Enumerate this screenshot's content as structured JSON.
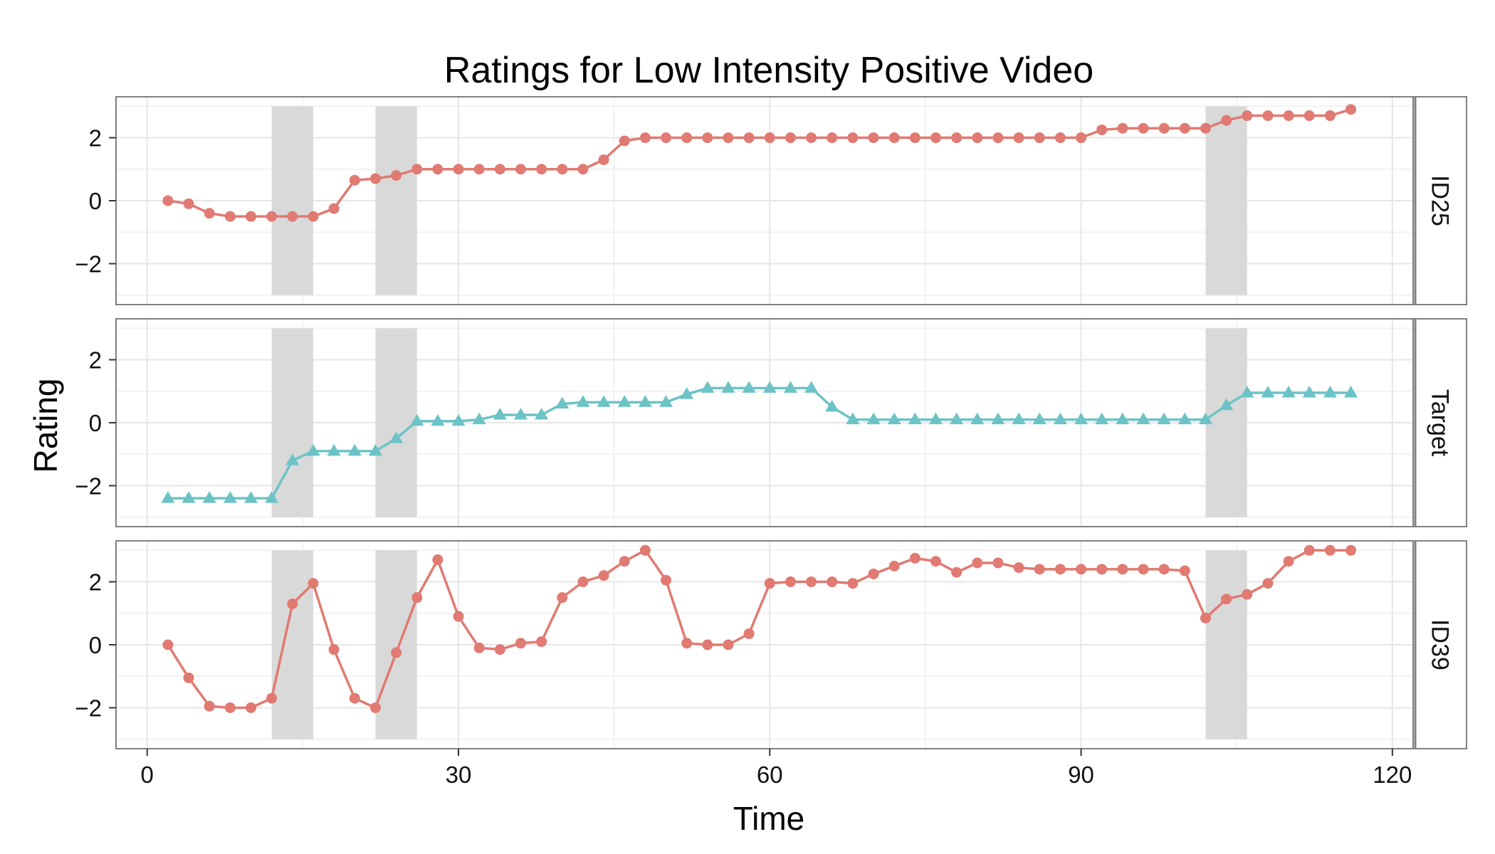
{
  "chart_data": {
    "type": "line",
    "title": "Ratings for Low Intensity Positive Video",
    "xlabel": "Time",
    "ylabel": "Rating",
    "xlim": [
      -3,
      122
    ],
    "ylim": [
      -3.3,
      3.3
    ],
    "x_ticks": [
      0,
      30,
      60,
      90,
      120
    ],
    "x_tick_labels": [
      "0",
      "30",
      "60",
      "90",
      "120"
    ],
    "y_ticks": [
      -2,
      0,
      2
    ],
    "y_tick_labels": [
      "−2",
      "0",
      "2"
    ],
    "grid": true,
    "legend": "none",
    "shaded_intervals": [
      [
        12,
        16
      ],
      [
        22,
        26
      ],
      [
        102,
        106
      ]
    ],
    "x": [
      2,
      4,
      6,
      8,
      10,
      12,
      14,
      16,
      18,
      20,
      22,
      24,
      26,
      28,
      30,
      32,
      34,
      36,
      38,
      40,
      42,
      44,
      46,
      48,
      50,
      52,
      54,
      56,
      58,
      60,
      62,
      64,
      66,
      68,
      70,
      72,
      74,
      76,
      78,
      80,
      82,
      84,
      86,
      88,
      90,
      92,
      94,
      96,
      98,
      100,
      102,
      104,
      106,
      108,
      110,
      112,
      114,
      116
    ],
    "series": [
      {
        "name": "ID25",
        "marker": "circle",
        "color": "#E07A72",
        "values": [
          0,
          -0.1,
          -0.4,
          -0.5,
          -0.5,
          -0.5,
          -0.5,
          -0.5,
          -0.25,
          0.65,
          0.7,
          0.8,
          1.0,
          1.0,
          1.0,
          1.0,
          1.0,
          1.0,
          1.0,
          1.0,
          1.0,
          1.3,
          1.9,
          2.0,
          2.0,
          2.0,
          2.0,
          2.0,
          2.0,
          2.0,
          2.0,
          2.0,
          2.0,
          2.0,
          2.0,
          2.0,
          2.0,
          2.0,
          2.0,
          2.0,
          2.0,
          2.0,
          2.0,
          2.0,
          2.0,
          2.25,
          2.3,
          2.3,
          2.3,
          2.3,
          2.3,
          2.55,
          2.7,
          2.7,
          2.7,
          2.7,
          2.7,
          2.9
        ]
      },
      {
        "name": "Target",
        "marker": "triangle",
        "color": "#6CC3C6",
        "values": [
          -2.4,
          -2.4,
          -2.4,
          -2.4,
          -2.4,
          -2.4,
          -1.2,
          -0.9,
          -0.9,
          -0.9,
          -0.9,
          -0.5,
          0.05,
          0.05,
          0.05,
          0.1,
          0.25,
          0.25,
          0.25,
          0.6,
          0.65,
          0.65,
          0.65,
          0.65,
          0.65,
          0.9,
          1.1,
          1.1,
          1.1,
          1.1,
          1.1,
          1.1,
          0.5,
          0.1,
          0.1,
          0.1,
          0.1,
          0.1,
          0.1,
          0.1,
          0.1,
          0.1,
          0.1,
          0.1,
          0.1,
          0.1,
          0.1,
          0.1,
          0.1,
          0.1,
          0.1,
          0.55,
          0.95,
          0.95,
          0.95,
          0.95,
          0.95,
          0.95
        ]
      },
      {
        "name": "ID39",
        "marker": "circle",
        "color": "#E07A72",
        "values": [
          0,
          -1.05,
          -1.95,
          -2.0,
          -2.0,
          -1.7,
          1.3,
          1.95,
          -0.15,
          -1.7,
          -2.0,
          -0.25,
          1.5,
          2.7,
          0.9,
          -0.1,
          -0.15,
          0.05,
          0.1,
          1.5,
          2.0,
          2.2,
          2.65,
          3.0,
          2.05,
          0.05,
          0.0,
          0.0,
          0.35,
          1.95,
          2.0,
          2.0,
          2.0,
          1.95,
          2.25,
          2.5,
          2.75,
          2.65,
          2.3,
          2.6,
          2.6,
          2.45,
          2.4,
          2.4,
          2.4,
          2.4,
          2.4,
          2.4,
          2.4,
          2.35,
          0.85,
          1.45,
          1.6,
          1.95,
          2.65,
          3.0,
          3.0,
          3.0
        ]
      }
    ]
  }
}
